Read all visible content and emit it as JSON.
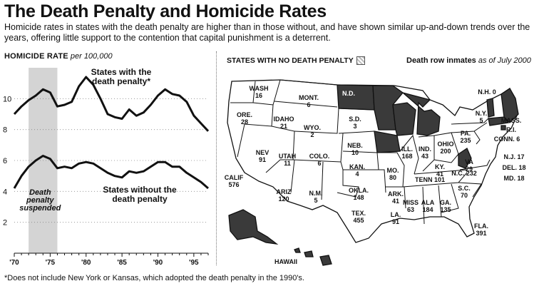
{
  "header": {
    "title": "The Death Penalty and Homicide Rates",
    "subtitle": "Homicide rates in states with the death penalty are higher than in those without, and have shown similar up-and-down trends over the years, offering little support to the contention that capital punishment is a deterrent."
  },
  "chart_data": {
    "type": "line",
    "title": "HOMICIDE RATE",
    "ylabel_unit": "per 100,000",
    "x_ticks": [
      "'70",
      "'75",
      "'80",
      "'85",
      "'90",
      "'95"
    ],
    "x_tick_values": [
      1970,
      1975,
      1980,
      1985,
      1990,
      1995
    ],
    "y_ticks": [
      2,
      4,
      6,
      8,
      10
    ],
    "xlim": [
      1970,
      1997
    ],
    "ylim": [
      0,
      12
    ],
    "grid": true,
    "shaded_region": {
      "x": [
        1972,
        1976
      ],
      "label": "Death penalty suspended"
    },
    "series": [
      {
        "name": "States with the death penalty*",
        "x": [
          1970,
          1971,
          1972,
          1973,
          1974,
          1975,
          1976,
          1977,
          1978,
          1979,
          1980,
          1981,
          1982,
          1983,
          1984,
          1985,
          1986,
          1987,
          1988,
          1989,
          1990,
          1991,
          1992,
          1993,
          1994,
          1995,
          1996,
          1997
        ],
        "values": [
          9.0,
          9.5,
          9.9,
          10.2,
          10.6,
          10.4,
          9.5,
          9.6,
          9.8,
          10.8,
          11.4,
          10.9,
          10.0,
          9.0,
          8.8,
          8.7,
          9.3,
          8.9,
          9.1,
          9.6,
          10.2,
          10.6,
          10.3,
          10.2,
          9.8,
          8.9,
          8.4,
          7.9
        ]
      },
      {
        "name": "States without the death penalty",
        "x": [
          1970,
          1971,
          1972,
          1973,
          1974,
          1975,
          1976,
          1977,
          1978,
          1979,
          1980,
          1981,
          1982,
          1983,
          1984,
          1985,
          1986,
          1987,
          1988,
          1989,
          1990,
          1991,
          1992,
          1993,
          1994,
          1995,
          1996,
          1997
        ],
        "values": [
          4.2,
          5.0,
          5.6,
          6.0,
          6.3,
          6.1,
          5.5,
          5.6,
          5.5,
          5.8,
          5.9,
          5.8,
          5.5,
          5.2,
          5.0,
          4.9,
          5.3,
          5.2,
          5.3,
          5.6,
          5.9,
          5.9,
          5.6,
          5.6,
          5.2,
          4.9,
          4.6,
          4.2
        ]
      }
    ],
    "annotations": [
      "Death penalty suspended"
    ]
  },
  "map": {
    "legend_label": "STATES WITH NO DEATH PENALTY",
    "subtitle_bold": "Death row inmates",
    "subtitle_italic": "as of July 2000",
    "states": [
      {
        "abbr": "WASH",
        "count": "16"
      },
      {
        "abbr": "ORE.",
        "count": "28"
      },
      {
        "abbr": "CALIF",
        "count": "576"
      },
      {
        "abbr": "IDAHO",
        "count": "21"
      },
      {
        "abbr": "NEV",
        "count": "91"
      },
      {
        "abbr": "MONT.",
        "count": "6"
      },
      {
        "abbr": "WYO.",
        "count": "2"
      },
      {
        "abbr": "UTAH",
        "count": "11"
      },
      {
        "abbr": "COLO.",
        "count": "6"
      },
      {
        "abbr": "ARIZ",
        "count": "120"
      },
      {
        "abbr": "N.M.",
        "count": "5"
      },
      {
        "abbr": "S.D.",
        "count": "3"
      },
      {
        "abbr": "NEB.",
        "count": "10"
      },
      {
        "abbr": "KAN.",
        "count": "4"
      },
      {
        "abbr": "OKLA.",
        "count": "148"
      },
      {
        "abbr": "TEX.",
        "count": "455"
      },
      {
        "abbr": "MO.",
        "count": "80"
      },
      {
        "abbr": "ARK.",
        "count": "41"
      },
      {
        "abbr": "LA.",
        "count": "91"
      },
      {
        "abbr": "ILL.",
        "count": "168"
      },
      {
        "abbr": "IND.",
        "count": "43"
      },
      {
        "abbr": "OHIO",
        "count": "200"
      },
      {
        "abbr": "KY.",
        "count": "41"
      },
      {
        "abbr": "TENN",
        "count": "101"
      },
      {
        "abbr": "MISS",
        "count": "63"
      },
      {
        "abbr": "ALA",
        "count": "184"
      },
      {
        "abbr": "GA.",
        "count": "135"
      },
      {
        "abbr": "FLA.",
        "count": "391"
      },
      {
        "abbr": "S.C.",
        "count": "70"
      },
      {
        "abbr": "N.C.",
        "count": "232"
      },
      {
        "abbr": "VA",
        "count": "29"
      },
      {
        "abbr": "PA.",
        "count": "235"
      },
      {
        "abbr": "N.Y.",
        "count": "5"
      },
      {
        "abbr": "N.H.",
        "count": "0"
      },
      {
        "abbr": "MASS.",
        "count": ""
      },
      {
        "abbr": "R.I.",
        "count": ""
      },
      {
        "abbr": "CONN.",
        "count": "6"
      },
      {
        "abbr": "N.J.",
        "count": "17"
      },
      {
        "abbr": "DEL.",
        "count": "18"
      },
      {
        "abbr": "MD.",
        "count": "18"
      },
      {
        "abbr": "N.D.",
        "count": ""
      },
      {
        "abbr": "HAWAII",
        "count": ""
      }
    ]
  },
  "footnote": "*Does not include New York or Kansas, which adopted the death penalty in the 1990's.",
  "colors": {
    "ink": "#111111",
    "no_death_penalty": "#3a3a3a",
    "suspended_band": "#d4d4d4"
  }
}
